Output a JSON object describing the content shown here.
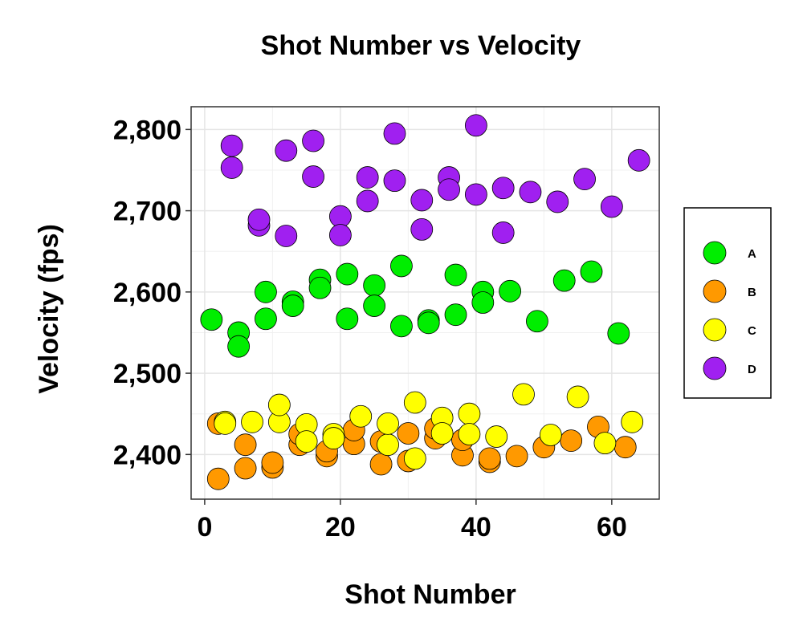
{
  "chart_data": {
    "type": "scatter",
    "title": "Shot Number vs Velocity",
    "xlabel": "Shot Number",
    "ylabel": "Velocity (fps)",
    "xlim": [
      -2,
      67
    ],
    "ylim": [
      2345,
      2828
    ],
    "x_ticks": [
      0,
      20,
      40,
      60
    ],
    "y_ticks": [
      2400,
      2500,
      2600,
      2700,
      2800
    ],
    "y_tick_labels": [
      "2,400",
      "2,500",
      "2,600",
      "2,700",
      "2,800"
    ],
    "grid": true,
    "legend_position": "right",
    "series": [
      {
        "name": "A",
        "color": "#00ee00",
        "points": [
          [
            1,
            2566
          ],
          [
            5,
            2550
          ],
          [
            5,
            2533
          ],
          [
            9,
            2567
          ],
          [
            9,
            2600
          ],
          [
            13,
            2588
          ],
          [
            13,
            2583
          ],
          [
            17,
            2615
          ],
          [
            17,
            2605
          ],
          [
            21,
            2622
          ],
          [
            21,
            2567
          ],
          [
            25,
            2608
          ],
          [
            25,
            2583
          ],
          [
            29,
            2632
          ],
          [
            29,
            2558
          ],
          [
            33,
            2565
          ],
          [
            33,
            2562
          ],
          [
            37,
            2572
          ],
          [
            37,
            2621
          ],
          [
            41,
            2600
          ],
          [
            41,
            2587
          ],
          [
            45,
            2601
          ],
          [
            49,
            2564
          ],
          [
            53,
            2614
          ],
          [
            57,
            2625
          ],
          [
            61,
            2549
          ]
        ]
      },
      {
        "name": "B",
        "color": "#ff9900",
        "points": [
          [
            2,
            2370
          ],
          [
            2,
            2438
          ],
          [
            6,
            2383
          ],
          [
            6,
            2412
          ],
          [
            10,
            2384
          ],
          [
            10,
            2390
          ],
          [
            14,
            2412
          ],
          [
            14,
            2425
          ],
          [
            18,
            2398
          ],
          [
            18,
            2404
          ],
          [
            22,
            2413
          ],
          [
            22,
            2430
          ],
          [
            26,
            2388
          ],
          [
            26,
            2416
          ],
          [
            30,
            2392
          ],
          [
            30,
            2426
          ],
          [
            34,
            2420
          ],
          [
            34,
            2432
          ],
          [
            38,
            2399
          ],
          [
            38,
            2418
          ],
          [
            42,
            2391
          ],
          [
            42,
            2395
          ],
          [
            46,
            2398
          ],
          [
            50,
            2409
          ],
          [
            54,
            2417
          ],
          [
            58,
            2434
          ],
          [
            62,
            2409
          ]
        ]
      },
      {
        "name": "C",
        "color": "#ffff00",
        "points": [
          [
            3,
            2440
          ],
          [
            3,
            2438
          ],
          [
            7,
            2440
          ],
          [
            11,
            2440
          ],
          [
            11,
            2461
          ],
          [
            15,
            2437
          ],
          [
            15,
            2416
          ],
          [
            19,
            2425
          ],
          [
            19,
            2420
          ],
          [
            23,
            2447
          ],
          [
            27,
            2412
          ],
          [
            27,
            2438
          ],
          [
            31,
            2464
          ],
          [
            31,
            2395
          ],
          [
            35,
            2445
          ],
          [
            35,
            2426
          ],
          [
            39,
            2450
          ],
          [
            39,
            2425
          ],
          [
            43,
            2422
          ],
          [
            47,
            2474
          ],
          [
            51,
            2424
          ],
          [
            55,
            2471
          ],
          [
            59,
            2414
          ],
          [
            63,
            2440
          ]
        ]
      },
      {
        "name": "D",
        "color": "#a020f0",
        "points": [
          [
            4,
            2780
          ],
          [
            4,
            2753
          ],
          [
            8,
            2682
          ],
          [
            8,
            2689
          ],
          [
            12,
            2774
          ],
          [
            12,
            2669
          ],
          [
            16,
            2786
          ],
          [
            16,
            2742
          ],
          [
            20,
            2693
          ],
          [
            20,
            2670
          ],
          [
            24,
            2741
          ],
          [
            24,
            2712
          ],
          [
            28,
            2795
          ],
          [
            28,
            2737
          ],
          [
            32,
            2713
          ],
          [
            32,
            2677
          ],
          [
            36,
            2741
          ],
          [
            36,
            2726
          ],
          [
            40,
            2805
          ],
          [
            40,
            2720
          ],
          [
            44,
            2728
          ],
          [
            44,
            2673
          ],
          [
            48,
            2723
          ],
          [
            52,
            2711
          ],
          [
            56,
            2739
          ],
          [
            60,
            2705
          ],
          [
            64,
            2762
          ]
        ]
      }
    ]
  }
}
